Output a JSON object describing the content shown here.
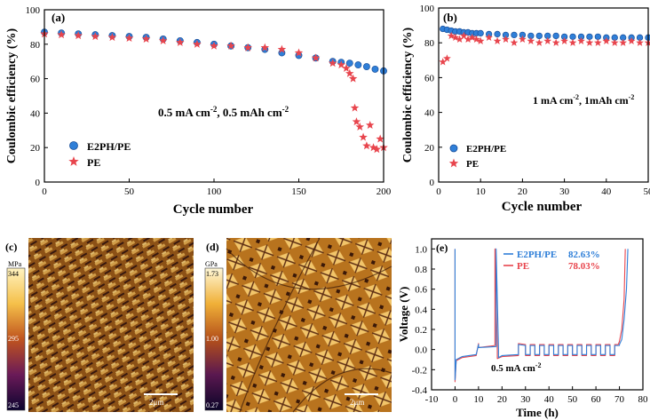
{
  "colors": {
    "e2ph": "#2f7fd8",
    "pe": "#e8454d",
    "axis": "#000000"
  },
  "panels": {
    "a": {
      "label": "(a)"
    },
    "b": {
      "label": "(b)"
    },
    "c": {
      "label": "(c)",
      "unit": "MPa",
      "scale_max": "344",
      "scale_mid": "295",
      "scale_min": "245",
      "scalebar": "2μm"
    },
    "d": {
      "label": "(d)",
      "unit": "GPa",
      "scale_max": "1.73",
      "scale_mid": "1.00",
      "scale_min": "0.27",
      "scalebar": "2μm"
    },
    "e": {
      "label": "(e)"
    }
  },
  "chart_data": [
    {
      "id": "a",
      "type": "scatter",
      "title": "",
      "xlabel": "Cycle number",
      "ylabel": "Coulombic efficiency (%)",
      "xlim": [
        0,
        200
      ],
      "ylim": [
        0,
        100
      ],
      "xticks": [
        0,
        50,
        100,
        150,
        200
      ],
      "yticks": [
        0,
        20,
        40,
        60,
        80,
        100
      ],
      "annotation": {
        "text": "0.5 mA cm",
        "sup1": "-2",
        "mid": ", 0.5 mAh cm",
        "sup2": "-2"
      },
      "legend_position": "bottom-left",
      "series": [
        {
          "name": "E2PH/PE",
          "marker": "circle",
          "x": [
            0,
            10,
            20,
            30,
            40,
            50,
            60,
            70,
            80,
            90,
            100,
            110,
            120,
            130,
            140,
            150,
            160,
            170,
            175,
            180,
            185,
            190,
            195,
            200
          ],
          "y": [
            87,
            86.5,
            86,
            85.5,
            85,
            84.5,
            84,
            83,
            82,
            81,
            80,
            79,
            78,
            77,
            75,
            73.5,
            72,
            70,
            69.5,
            69,
            68,
            67,
            65.5,
            64.5
          ]
        },
        {
          "name": "PE",
          "marker": "star",
          "x": [
            0,
            10,
            20,
            30,
            40,
            50,
            60,
            70,
            80,
            90,
            100,
            110,
            120,
            130,
            140,
            150,
            160,
            170,
            175,
            178,
            180,
            182,
            183,
            184,
            186,
            188,
            190,
            192,
            194,
            196,
            198,
            200
          ],
          "y": [
            86,
            85.5,
            85,
            84.5,
            84,
            83.5,
            83,
            82,
            81,
            80,
            79,
            79,
            78,
            78,
            77,
            75,
            72,
            69,
            68,
            66,
            63,
            60,
            43,
            35,
            32,
            26,
            21,
            33,
            20,
            19,
            25,
            20
          ]
        }
      ]
    },
    {
      "id": "b",
      "type": "scatter",
      "title": "",
      "xlabel": "Cycle number",
      "ylabel": "Coulombic efficiency (%)",
      "xlim": [
        0,
        50
      ],
      "ylim": [
        0,
        100
      ],
      "xticks": [
        0,
        10,
        20,
        30,
        40,
        50
      ],
      "yticks": [
        0,
        20,
        40,
        60,
        80,
        100
      ],
      "annotation": {
        "text": "1 mA cm",
        "sup1": "-2",
        "mid": ", 1mAh cm",
        "sup2": "-2"
      },
      "legend_position": "bottom-left",
      "series": [
        {
          "name": "E2PH/PE",
          "marker": "circle",
          "x": [
            1,
            2,
            3,
            4,
            5,
            6,
            7,
            8,
            9,
            10,
            12,
            14,
            16,
            18,
            20,
            22,
            24,
            26,
            28,
            30,
            32,
            34,
            36,
            38,
            40,
            42,
            44,
            46,
            48,
            50
          ],
          "y": [
            88,
            87.5,
            87,
            86.5,
            86.5,
            86,
            86,
            85.5,
            85.5,
            85.5,
            85,
            85,
            84.5,
            84.5,
            84.5,
            84,
            84,
            84,
            84,
            83.5,
            83.5,
            83.5,
            83.5,
            83.5,
            83,
            83,
            83,
            83,
            83,
            83
          ]
        },
        {
          "name": "PE",
          "marker": "star",
          "x": [
            1,
            2,
            3,
            4,
            5,
            6,
            7,
            8,
            9,
            10,
            12,
            14,
            16,
            18,
            20,
            22,
            24,
            26,
            28,
            30,
            32,
            34,
            36,
            38,
            40,
            42,
            44,
            46,
            48,
            50
          ],
          "y": [
            69,
            71,
            84,
            83,
            82,
            84,
            82,
            83,
            82,
            81,
            83,
            81,
            82,
            80,
            82,
            81,
            80,
            81,
            80,
            81,
            80,
            81,
            80,
            80,
            81,
            80,
            80,
            81,
            80,
            80
          ]
        }
      ]
    },
    {
      "id": "e",
      "type": "line",
      "title": "",
      "xlabel": "Time (h)",
      "ylabel": "Voltage (V)",
      "xlim": [
        -10,
        80
      ],
      "ylim": [
        -0.4,
        1.1
      ],
      "xticks": [
        -10,
        0,
        10,
        20,
        30,
        40,
        50,
        60,
        70,
        80
      ],
      "yticks": [
        -0.4,
        -0.2,
        0.0,
        0.2,
        0.4,
        0.6,
        0.8,
        1.0
      ],
      "annotation": {
        "text": "0.5 mA cm",
        "sup1": "-2"
      },
      "legend_position": "top-center",
      "series": [
        {
          "name": "E2PH/PE",
          "value_label": "82.63%",
          "x": [
            0,
            0,
            0.5,
            3,
            9,
            10,
            10,
            17.5,
            17.5,
            18.5,
            18.5,
            20,
            27,
            27,
            30,
            30,
            32,
            32,
            34,
            34,
            36,
            36,
            38,
            38,
            40,
            40,
            42,
            42,
            44,
            44,
            46,
            46,
            48,
            48,
            50,
            50,
            52,
            52,
            54,
            54,
            56,
            56,
            58,
            58,
            60,
            60,
            62,
            62,
            64,
            64,
            66,
            66,
            68,
            68,
            70,
            70,
            71,
            72,
            73,
            73.6
          ],
          "y": [
            1.0,
            -0.3,
            -0.1,
            -0.07,
            -0.05,
            0.05,
            0.02,
            0.03,
            1.0,
            0.0,
            -0.08,
            -0.06,
            -0.05,
            0.05,
            0.04,
            -0.05,
            -0.05,
            0.04,
            0.04,
            -0.05,
            -0.05,
            0.04,
            0.04,
            -0.05,
            -0.05,
            0.04,
            0.04,
            -0.05,
            -0.05,
            0.04,
            0.04,
            -0.05,
            -0.05,
            0.04,
            0.04,
            -0.05,
            -0.05,
            0.04,
            0.04,
            -0.05,
            -0.05,
            0.04,
            0.04,
            -0.05,
            -0.05,
            0.04,
            0.04,
            -0.05,
            -0.05,
            0.04,
            0.04,
            -0.05,
            -0.05,
            0.04,
            0.04,
            0.05,
            0.1,
            0.3,
            0.6,
            1.0
          ]
        },
        {
          "name": "PE",
          "value_label": "78.03%",
          "x": [
            0,
            0,
            0.5,
            3,
            9,
            10,
            10,
            17,
            17,
            18,
            18,
            20,
            27,
            27,
            30,
            30,
            32,
            32,
            34,
            34,
            36,
            36,
            38,
            38,
            40,
            40,
            42,
            42,
            44,
            44,
            46,
            46,
            48,
            48,
            50,
            50,
            52,
            52,
            54,
            54,
            56,
            56,
            58,
            58,
            60,
            60,
            62,
            62,
            64,
            64,
            66,
            66,
            68,
            68,
            69.5,
            70,
            71,
            72,
            72.5
          ],
          "y": [
            1.0,
            -0.32,
            -0.11,
            -0.08,
            -0.06,
            0.06,
            0.02,
            0.04,
            1.0,
            0.0,
            -0.09,
            -0.07,
            -0.06,
            0.06,
            0.05,
            -0.06,
            -0.06,
            0.05,
            0.05,
            -0.06,
            -0.06,
            0.05,
            0.05,
            -0.06,
            -0.06,
            0.05,
            0.05,
            -0.06,
            -0.06,
            0.05,
            0.05,
            -0.06,
            -0.06,
            0.05,
            0.05,
            -0.06,
            -0.06,
            0.05,
            0.05,
            -0.06,
            -0.06,
            0.05,
            0.05,
            -0.06,
            -0.06,
            0.05,
            0.05,
            -0.06,
            -0.06,
            0.05,
            0.05,
            -0.06,
            -0.06,
            0.05,
            0.05,
            0.08,
            0.2,
            0.5,
            1.0
          ]
        }
      ]
    }
  ]
}
